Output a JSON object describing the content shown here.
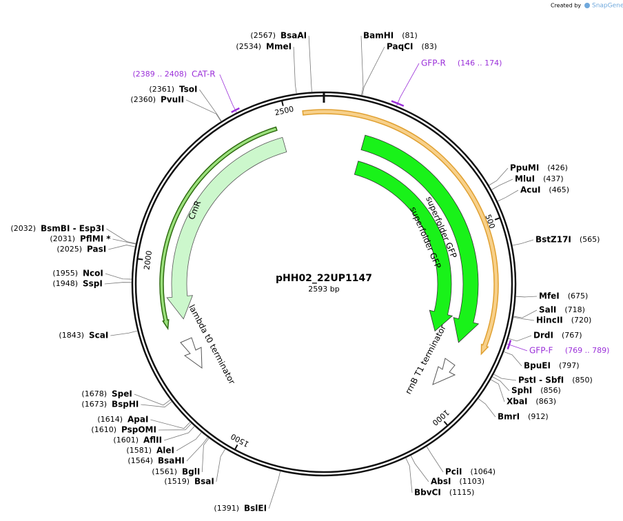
{
  "watermark": {
    "prefix": "Created by",
    "brand": "SnapGene"
  },
  "plasmid": {
    "name": "pHH02_22UP1147",
    "length": "2593 bp"
  },
  "ticks": [
    "500",
    "1000",
    "1500",
    "2000",
    "2500"
  ],
  "features": [
    {
      "label": "superfolder GFP"
    },
    {
      "label": "superfolder GFP"
    },
    {
      "label": "CmR"
    },
    {
      "label": "lambda t0 terminator"
    },
    {
      "label": "rrnB T1 terminator"
    }
  ],
  "sites": [
    {
      "name": "BsaAI",
      "position": "(2567)"
    },
    {
      "name": "MmeI",
      "position": "(2534)"
    },
    {
      "name": "BamHI",
      "position": "(81)"
    },
    {
      "name": "PaqCI",
      "position": "(83)"
    },
    {
      "name": "PpuMI",
      "position": "(426)"
    },
    {
      "name": "MluI",
      "position": "(437)"
    },
    {
      "name": "AcuI",
      "position": "(465)"
    },
    {
      "name": "BstZ17I",
      "position": "(565)"
    },
    {
      "name": "MfeI",
      "position": "(675)"
    },
    {
      "name": "SalI",
      "position": "(718)"
    },
    {
      "name": "HincII",
      "position": "(720)"
    },
    {
      "name": "DrdI",
      "position": "(767)"
    },
    {
      "name": "BpuEI",
      "position": "(797)"
    },
    {
      "name": "PstI - SbfI",
      "position": "(850)"
    },
    {
      "name": "SphI",
      "position": "(856)"
    },
    {
      "name": "XbaI",
      "position": "(863)"
    },
    {
      "name": "BmrI",
      "position": "(912)"
    },
    {
      "name": "PciI",
      "position": "(1064)"
    },
    {
      "name": "AbsI",
      "position": "(1103)"
    },
    {
      "name": "BbvCI",
      "position": "(1115)"
    },
    {
      "name": "BslEI",
      "position": "(1391)"
    },
    {
      "name": "BsaI",
      "position": "(1519)"
    },
    {
      "name": "BglI",
      "position": "(1561)"
    },
    {
      "name": "BsaHI",
      "position": "(1564)"
    },
    {
      "name": "AleI",
      "position": "(1581)"
    },
    {
      "name": "AflII",
      "position": "(1601)"
    },
    {
      "name": "PspOMI",
      "position": "(1610)"
    },
    {
      "name": "ApaI",
      "position": "(1614)"
    },
    {
      "name": "BspHI",
      "position": "(1673)"
    },
    {
      "name": "SpeI",
      "position": "(1678)"
    },
    {
      "name": "ScaI",
      "position": "(1843)"
    },
    {
      "name": "SspI",
      "position": "(1948)"
    },
    {
      "name": "NcoI",
      "position": "(1955)"
    },
    {
      "name": "PasI",
      "position": "(2025)"
    },
    {
      "name": "PflMI *",
      "position": "(2031)"
    },
    {
      "name": "BsmBI - Esp3I",
      "position": "(2032)"
    },
    {
      "name": "PvuII",
      "position": "(2360)"
    },
    {
      "name": "TsoI",
      "position": "(2361)"
    }
  ],
  "primers": [
    {
      "name": "CAT-R",
      "range": "(2389 .. 2408)"
    },
    {
      "name": "GFP-R",
      "range": "(146 .. 174)"
    },
    {
      "name": "GFP-F",
      "range": "(769 .. 789)"
    }
  ]
}
